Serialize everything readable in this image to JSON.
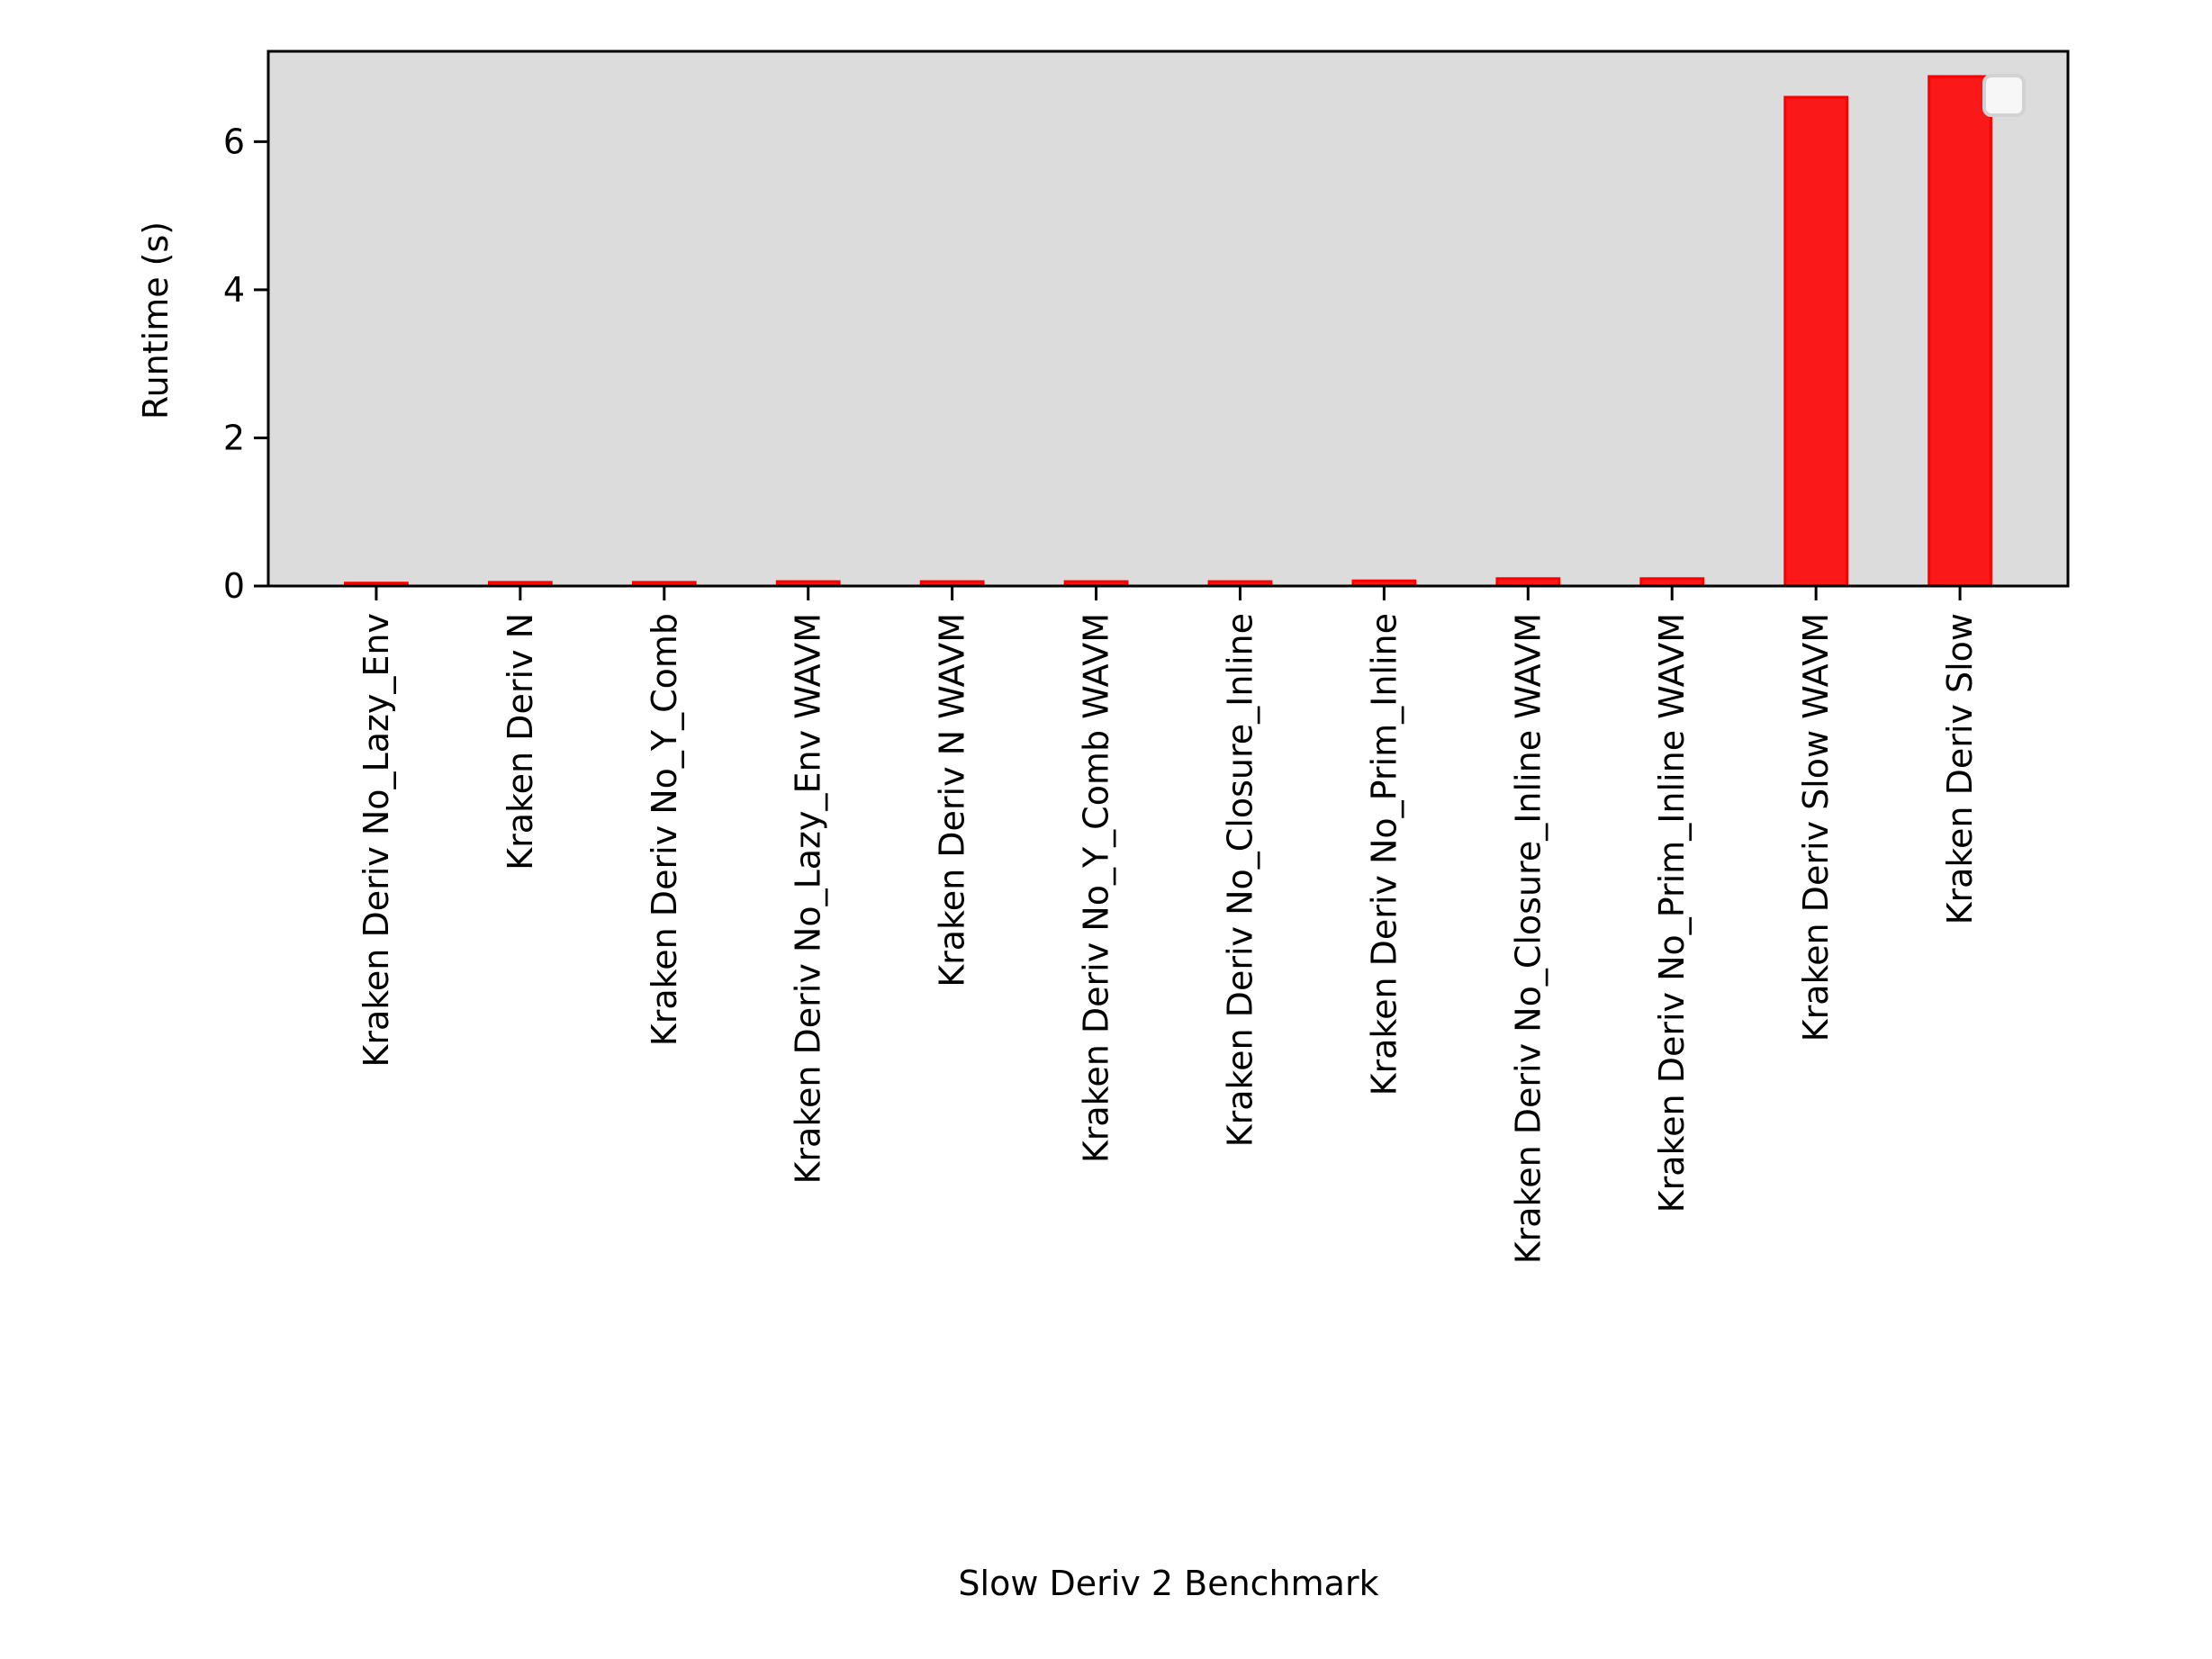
{
  "chart_data": {
    "type": "bar",
    "title": "",
    "xlabel": "Slow Deriv 2 Benchmark",
    "ylabel": "Runtime (s)",
    "ylim": [
      0,
      7.22
    ],
    "yticks": [
      "0",
      "2",
      "4",
      "6"
    ],
    "grid": false,
    "legend": "top-right (empty)",
    "bar_color": "#fa1818",
    "plot_background": "#dcdcdc",
    "categories": [
      "Kraken Deriv No_Lazy_Env",
      "Kraken Deriv N",
      "Kraken Deriv No_Y_Comb",
      "Kraken Deriv No_Lazy_Env WAVM",
      "Kraken Deriv N WAVM",
      "Kraken Deriv No_Y_Comb WAVM",
      "Kraken Deriv No_Closure_Inline",
      "Kraken Deriv No_Prim_Inline",
      "Kraken Deriv No_Closure_Inline WAVM",
      "Kraken Deriv No_Prim_Inline WAVM",
      "Kraken Deriv Slow WAVM",
      "Kraken Deriv Slow"
    ],
    "values": [
      0.04,
      0.05,
      0.05,
      0.06,
      0.06,
      0.06,
      0.06,
      0.07,
      0.1,
      0.1,
      6.6,
      6.88
    ]
  }
}
